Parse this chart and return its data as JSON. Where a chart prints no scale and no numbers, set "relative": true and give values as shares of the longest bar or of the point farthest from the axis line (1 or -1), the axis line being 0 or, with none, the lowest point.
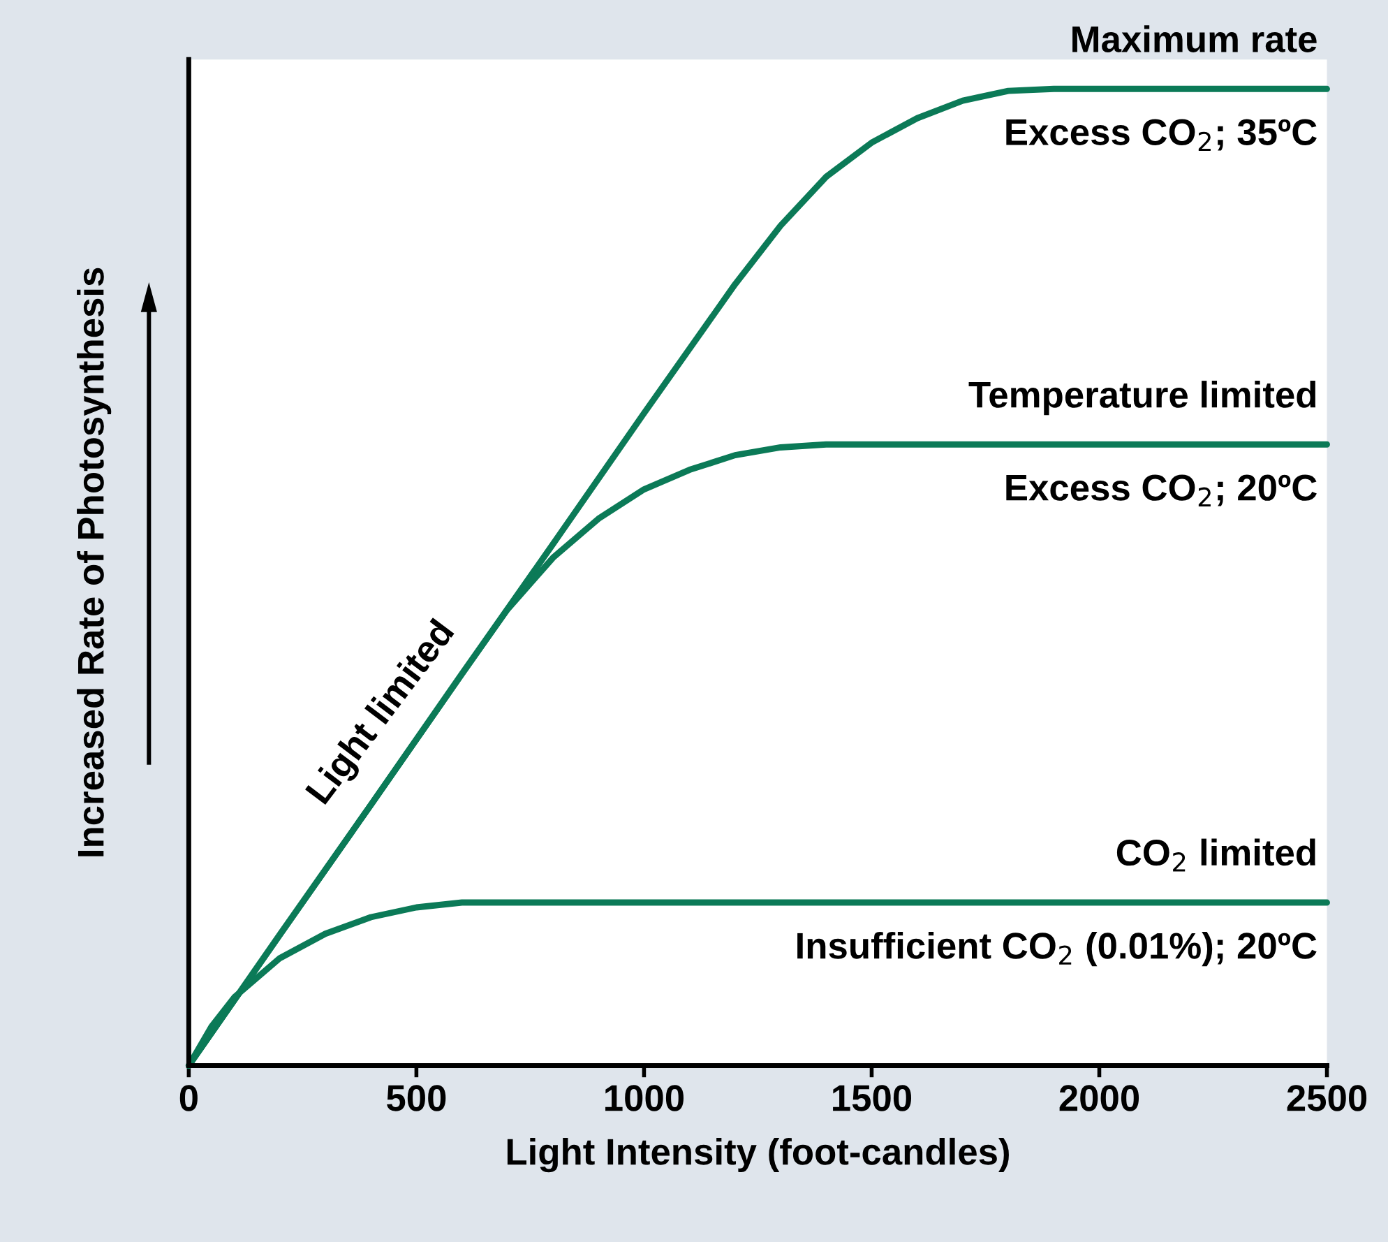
{
  "chart_data": {
    "type": "line",
    "relative": true,
    "xlabel": "Light Intensity (foot-candles)",
    "ylabel": "Increased Rate of Photosynthesis",
    "xlim": [
      0,
      2500
    ],
    "xticks": [
      0,
      500,
      1000,
      1500,
      2000,
      2500
    ],
    "grid": false,
    "legend": false,
    "marker": "none",
    "line_style": "solid",
    "series": [
      {
        "name": "Maximum rate",
        "color": "#0b7a57",
        "x": [
          0,
          200,
          400,
          600,
          800,
          1000,
          1200,
          1300,
          1400,
          1500,
          1600,
          1700,
          1800,
          1900,
          2000,
          2500
        ],
        "values": [
          0,
          0.134,
          0.267,
          0.401,
          0.534,
          0.668,
          0.8,
          0.86,
          0.91,
          0.945,
          0.97,
          0.988,
          0.998,
          1,
          1,
          1
        ]
      },
      {
        "name": "Temperature limited",
        "color": "#0b7a57",
        "x": [
          0,
          200,
          400,
          600,
          700,
          800,
          900,
          1000,
          1100,
          1200,
          1300,
          1400,
          2500
        ],
        "values": [
          0,
          0.134,
          0.267,
          0.401,
          0.467,
          0.52,
          0.56,
          0.59,
          0.61,
          0.625,
          0.633,
          0.636,
          0.636
        ]
      },
      {
        "name": "CO$_{2}$ limited",
        "color": "#0b7a57",
        "x": [
          0,
          50,
          100,
          200,
          300,
          400,
          500,
          600,
          2500
        ],
        "values": [
          0,
          0.04,
          0.07,
          0.11,
          0.135,
          0.152,
          0.162,
          0.167,
          0.167
        ]
      }
    ],
    "annotations": [
      "Excess CO$_{2}$; 35ºC",
      "Excess CO$_{2}$; 20ºC",
      "Insufficient CO$_{2}$ (0.01%); 20ºC",
      "Light limited"
    ]
  }
}
